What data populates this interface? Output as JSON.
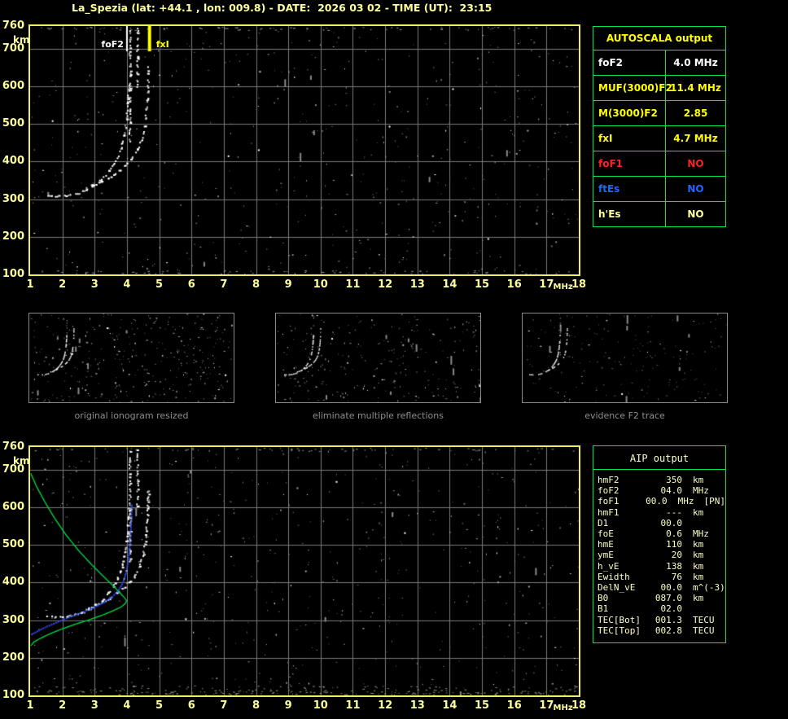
{
  "title": "La_Spezia (lat: +44.1 , lon: 009.8) - DATE:  2026 03 02 - TIME (UT):  23:15",
  "colors": {
    "accent_yellow": "#ffff00",
    "pale_yellow": "#ffff9c",
    "table_border_green": "#00e84c",
    "grid_gray": "#7a7a7a",
    "profile_green": "#00d240",
    "fit_blue": "#2d4cf0",
    "alert_red": "#ff2222",
    "info_blue": "#2266ff"
  },
  "axes": {
    "y_unit": "km",
    "x_unit": "MHz",
    "y_ticks": [
      760,
      700,
      600,
      500,
      400,
      300,
      200,
      100
    ],
    "x_ticks": [
      1,
      2,
      3,
      4,
      5,
      6,
      7,
      8,
      9,
      10,
      11,
      12,
      13,
      14,
      15,
      16,
      17,
      18
    ],
    "x_range": [
      1,
      18
    ],
    "y_range": [
      100,
      760
    ]
  },
  "top_plot": {
    "markers": [
      {
        "label": "foF2",
        "freq": 4.0,
        "color": "#ffffff",
        "side": "left"
      },
      {
        "label": "fxI",
        "freq": 4.7,
        "color": "#ffff00",
        "side": "right"
      }
    ]
  },
  "thumbnails": [
    {
      "caption": "original ionogram resized"
    },
    {
      "caption": "eliminate multiple reflections"
    },
    {
      "caption": "evidence F2 trace"
    }
  ],
  "autoscala_table": {
    "header": "AUTOSCALA output",
    "rows": [
      {
        "label": "foF2",
        "value": "4.0 MHz",
        "color": "#ffffff"
      },
      {
        "label": "MUF(3000)F2",
        "value": "11.4 MHz",
        "color": "#ffff00"
      },
      {
        "label": "M(3000)F2",
        "value": "2.85",
        "color": "#ffff00"
      },
      {
        "label": "fxI",
        "value": "4.7 MHz",
        "color": "#ffff00"
      },
      {
        "label": "foF1",
        "value": "NO",
        "color": "#ff2222"
      },
      {
        "label": "ftEs",
        "value": "NO",
        "color": "#2266ff"
      },
      {
        "label": "h'Es",
        "value": "NO",
        "color": "#ffff9c"
      }
    ]
  },
  "aip_table": {
    "header": "AIP output",
    "rows": [
      {
        "label": "hmF2",
        "value": "350",
        "unit": "km",
        "note": ""
      },
      {
        "label": "foF2",
        "value": "04.0",
        "unit": "MHz",
        "note": ""
      },
      {
        "label": "foF1",
        "value": "00.0",
        "unit": "MHz",
        "note": "[PN]"
      },
      {
        "label": "hmF1",
        "value": "---",
        "unit": "km",
        "note": ""
      },
      {
        "label": "D1",
        "value": "00.0",
        "unit": "",
        "note": ""
      },
      {
        "label": "foE",
        "value": "0.6",
        "unit": "MHz",
        "note": ""
      },
      {
        "label": "hmE",
        "value": "110",
        "unit": "km",
        "note": ""
      },
      {
        "label": "ymE",
        "value": "20",
        "unit": "km",
        "note": ""
      },
      {
        "label": "h_vE",
        "value": "138",
        "unit": "km",
        "note": ""
      },
      {
        "label": "Ewidth",
        "value": "76",
        "unit": "km",
        "note": ""
      },
      {
        "label": "DelN_vE",
        "value": "00.0",
        "unit": "m^(-3)",
        "note": ""
      },
      {
        "label": "B0",
        "value": "087.0",
        "unit": "km",
        "note": ""
      },
      {
        "label": "B1",
        "value": "02.0",
        "unit": "",
        "note": ""
      },
      {
        "label": "TEC[Bot]",
        "value": "001.3",
        "unit": "TECU",
        "note": ""
      },
      {
        "label": "TEC[Top]",
        "value": "002.8",
        "unit": "TECU",
        "note": ""
      }
    ]
  },
  "chart_data": [
    {
      "type": "scatter",
      "name": "ionogram",
      "xlabel": "MHz",
      "ylabel": "km",
      "xlim": [
        1,
        18
      ],
      "ylim": [
        100,
        760
      ],
      "grid": true,
      "markers": {
        "foF2_MHz": 4.0,
        "fxI_MHz": 4.7,
        "MUF3000F2_MHz": 11.4,
        "M3000F2": 2.85
      },
      "series": [
        {
          "name": "o_trace",
          "points": [
            [
              1.55,
              309
            ],
            [
              1.8,
              308
            ],
            [
              2.05,
              308
            ],
            [
              2.3,
              311
            ],
            [
              2.55,
              317
            ],
            [
              2.8,
              326
            ],
            [
              3.0,
              337
            ],
            [
              3.2,
              350
            ],
            [
              3.4,
              367
            ],
            [
              3.55,
              385
            ],
            [
              3.7,
              407
            ],
            [
              3.82,
              432
            ],
            [
              3.9,
              458
            ],
            [
              3.96,
              487
            ],
            [
              4.0,
              516
            ],
            [
              4.03,
              545
            ],
            [
              4.05,
              572
            ],
            [
              4.07,
              600
            ]
          ]
        },
        {
          "name": "x_trace",
          "points": [
            [
              2.75,
              330
            ],
            [
              3.0,
              338
            ],
            [
              3.2,
              346
            ],
            [
              3.45,
              357
            ],
            [
              3.7,
              371
            ],
            [
              3.9,
              385
            ],
            [
              4.1,
              402
            ],
            [
              4.25,
              418
            ],
            [
              4.37,
              437
            ],
            [
              4.46,
              458
            ],
            [
              4.53,
              483
            ],
            [
              4.58,
              512
            ],
            [
              4.62,
              545
            ],
            [
              4.65,
              580
            ],
            [
              4.66,
              615
            ],
            [
              4.67,
              650
            ]
          ]
        },
        {
          "name": "spread_echo_1",
          "points": [
            [
              4.1,
              455
            ],
            [
              4.1,
              745
            ]
          ]
        },
        {
          "name": "spread_echo_2",
          "points": [
            [
              4.33,
              600
            ],
            [
              4.33,
              752
            ]
          ]
        }
      ]
    },
    {
      "type": "line",
      "name": "profile_inversion",
      "xlabel": "MHz",
      "ylabel": "km",
      "xlim": [
        1,
        18
      ],
      "ylim": [
        100,
        760
      ],
      "series": [
        {
          "name": "electron_density_profile",
          "color": "#00d240",
          "points": [
            [
              1.02,
              690
            ],
            [
              1.2,
              655
            ],
            [
              1.45,
              615
            ],
            [
              1.75,
              572
            ],
            [
              2.1,
              528
            ],
            [
              2.5,
              485
            ],
            [
              2.9,
              448
            ],
            [
              3.25,
              418
            ],
            [
              3.55,
              393
            ],
            [
              3.78,
              373
            ],
            [
              3.92,
              360
            ],
            [
              3.99,
              352
            ],
            [
              3.95,
              344
            ],
            [
              3.8,
              334
            ],
            [
              3.55,
              324
            ],
            [
              3.2,
              312
            ],
            [
              2.8,
              300
            ],
            [
              2.4,
              289
            ],
            [
              2.0,
              277
            ],
            [
              1.65,
              265
            ],
            [
              1.35,
              253
            ],
            [
              1.12,
              242
            ],
            [
              1.02,
              232
            ]
          ]
        },
        {
          "name": "trace_fit",
          "color": "#2d4cf0",
          "points": [
            [
              1.05,
              262
            ],
            [
              1.4,
              278
            ],
            [
              1.8,
              293
            ],
            [
              2.2,
              307
            ],
            [
              2.6,
              320
            ],
            [
              3.0,
              334
            ],
            [
              3.3,
              347
            ],
            [
              3.55,
              362
            ],
            [
              3.75,
              380
            ],
            [
              3.88,
              400
            ],
            [
              3.97,
              425
            ],
            [
              4.04,
              455
            ],
            [
              4.09,
              495
            ],
            [
              4.12,
              540
            ],
            [
              4.14,
              575
            ],
            [
              4.15,
              605
            ]
          ]
        }
      ]
    }
  ]
}
